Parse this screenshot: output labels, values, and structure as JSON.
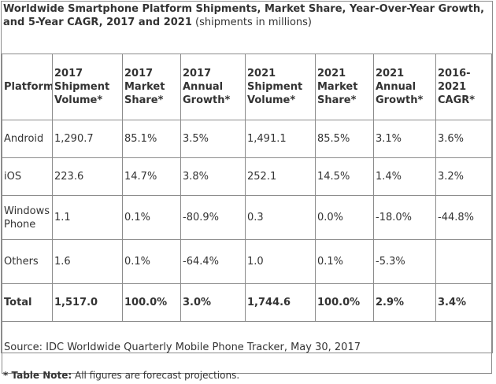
{
  "title_bold": "Worldwide Smartphone Platform Shipments, Market Share, Year-Over-Year Growth, and 5-Year CAGR, 2017 and 2021",
  "title_normal": " (shipments in millions)",
  "headers": [
    "Platform",
    "2017 Shipment Volume*",
    "2017 Market Share*",
    "2017 Annual Growth*",
    "2021 Shipment Volume*",
    "2021 Market Share*",
    "2021 Annual Growth*",
    "2016-2021 CAGR*"
  ],
  "rows": [
    [
      "Android",
      "1,290.7",
      "85.1%",
      "3.5%",
      "1,491.1",
      "85.5%",
      "3.1%",
      "3.6%"
    ],
    [
      "iOS",
      "223.6",
      "14.7%",
      "3.8%",
      "252.1",
      "14.5%",
      "1.4%",
      "3.2%"
    ],
    [
      "Windows Phone",
      "1.1",
      "0.1%",
      "-80.9%",
      "0.3",
      "0.0%",
      "-18.0%",
      "-44.8%"
    ],
    [
      "Others",
      "1.6",
      "0.1%",
      "-64.4%",
      "1.0",
      "0.1%",
      "-5.3%",
      ""
    ],
    [
      "Total",
      "1,517.0",
      "100.0%",
      "3.0%",
      "1,744.6",
      "100.0%",
      "2.9%",
      "3.4%"
    ]
  ],
  "source": "Source: IDC Worldwide Quarterly Mobile Phone Tracker, May 30, 2017",
  "note_bold": "* Table Note:",
  "note_text": " All figures are forecast projections."
}
